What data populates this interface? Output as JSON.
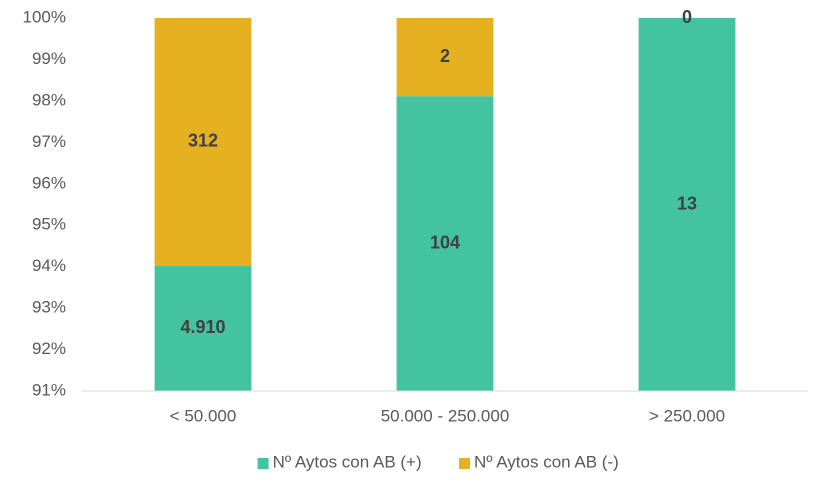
{
  "chart_data": {
    "type": "bar",
    "stacking": "percent",
    "categories": [
      "< 50.000",
      "50.000 - 250.000",
      "> 250.000"
    ],
    "series": [
      {
        "name": "Nº Aytos con AB (+)",
        "color": "#43c3a0",
        "values": [
          4910,
          104,
          13
        ],
        "value_labels": [
          "4.910",
          "104",
          "13"
        ]
      },
      {
        "name": "Nº Aytos con AB (-)",
        "color": "#e6b120",
        "values": [
          312,
          2,
          0
        ]
      }
    ],
    "ylim": [
      91,
      100
    ],
    "yticks": [
      {
        "value": 91,
        "label": "91%"
      },
      {
        "value": 92,
        "label": "92%"
      },
      {
        "value": 93,
        "label": "93%"
      },
      {
        "value": 94,
        "label": "94%"
      },
      {
        "value": 95,
        "label": "95%"
      },
      {
        "value": 96,
        "label": "96%"
      },
      {
        "value": 97,
        "label": "97%"
      },
      {
        "value": 98,
        "label": "98%"
      },
      {
        "value": 99,
        "label": "99%"
      },
      {
        "value": 100,
        "label": "100%"
      }
    ],
    "grid": false,
    "legend": "bottom"
  }
}
